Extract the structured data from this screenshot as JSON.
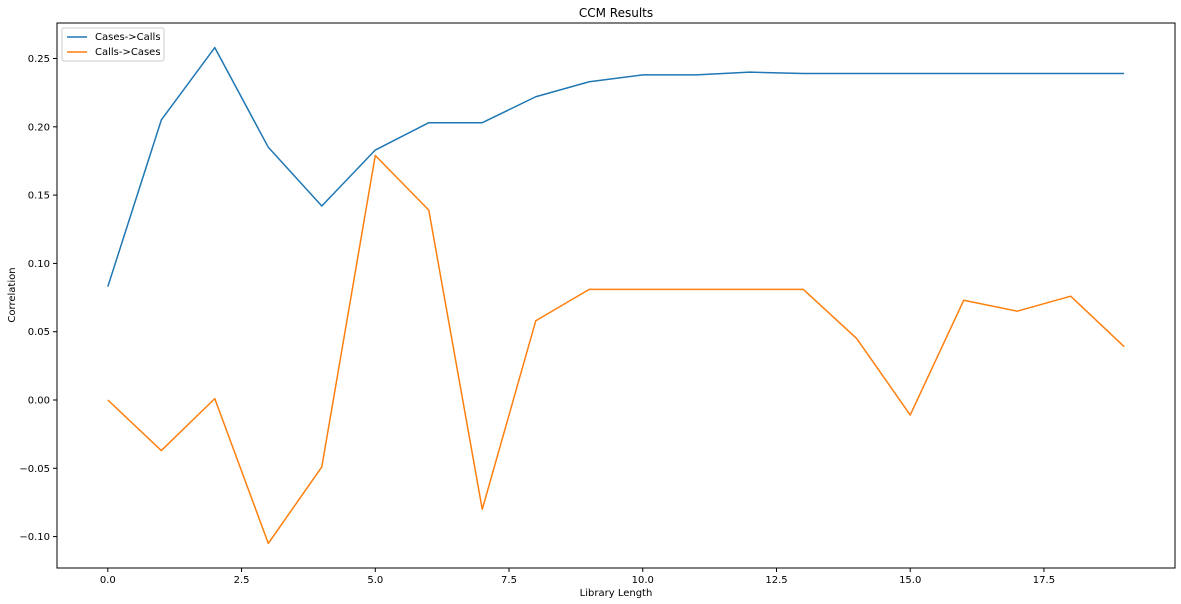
{
  "chart_data": {
    "type": "line",
    "title": "CCM Results",
    "xlabel": "Library Length",
    "ylabel": "Correlation",
    "xlim": [
      -0.95,
      19.95
    ],
    "ylim": [
      -0.123,
      0.276
    ],
    "x_ticks": [
      0.0,
      2.5,
      5.0,
      7.5,
      10.0,
      12.5,
      15.0,
      17.5
    ],
    "x_tick_labels": [
      "0.0",
      "2.5",
      "5.0",
      "7.5",
      "10.0",
      "12.5",
      "15.0",
      "17.5"
    ],
    "y_ticks": [
      -0.1,
      -0.05,
      0.0,
      0.05,
      0.1,
      0.15,
      0.2,
      0.25
    ],
    "y_tick_labels": [
      "−0.10",
      "−0.05",
      "0.00",
      "0.05",
      "0.10",
      "0.15",
      "0.20",
      "0.25"
    ],
    "grid": false,
    "legend_position": "top-left",
    "x": [
      0,
      1,
      2,
      3,
      4,
      5,
      6,
      7,
      8,
      9,
      10,
      11,
      12,
      13,
      14,
      15,
      16,
      17,
      18,
      19
    ],
    "series": [
      {
        "name": "Cases->Calls",
        "color": "#1f77b4",
        "values": [
          0.083,
          0.205,
          0.258,
          0.185,
          0.142,
          0.183,
          0.203,
          0.203,
          0.222,
          0.233,
          0.238,
          0.238,
          0.24,
          0.239,
          0.239,
          0.239,
          0.239,
          0.239,
          0.239,
          0.239
        ]
      },
      {
        "name": "Calls->Cases",
        "color": "#ff7f0e",
        "values": [
          0.0,
          -0.037,
          0.001,
          -0.105,
          -0.049,
          0.179,
          0.139,
          -0.08,
          0.058,
          0.081,
          0.081,
          0.081,
          0.081,
          0.081,
          0.045,
          -0.011,
          0.073,
          0.065,
          0.076,
          0.039
        ]
      }
    ]
  }
}
